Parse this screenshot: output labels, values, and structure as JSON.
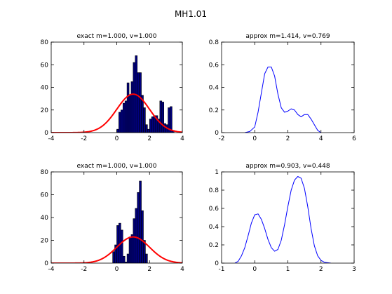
{
  "figure": {
    "title": "MH1.01"
  },
  "chart_data": [
    {
      "type": "histogram",
      "title": "exact m=1.000, v=1.000",
      "xlim": [
        -4,
        4
      ],
      "ylim": [
        0,
        80
      ],
      "xticks": [
        -4,
        -2,
        0,
        2,
        4
      ],
      "yticks": [
        0,
        20,
        40,
        60,
        80
      ],
      "bin_width": 0.125,
      "bars": [
        {
          "x": 0.0,
          "y": 3
        },
        {
          "x": 0.125,
          "y": 18
        },
        {
          "x": 0.25,
          "y": 20
        },
        {
          "x": 0.375,
          "y": 26
        },
        {
          "x": 0.5,
          "y": 28
        },
        {
          "x": 0.625,
          "y": 44
        },
        {
          "x": 0.75,
          "y": 33
        },
        {
          "x": 0.875,
          "y": 45
        },
        {
          "x": 1.0,
          "y": 62
        },
        {
          "x": 1.125,
          "y": 68
        },
        {
          "x": 1.25,
          "y": 53
        },
        {
          "x": 1.375,
          "y": 53
        },
        {
          "x": 1.5,
          "y": 33
        },
        {
          "x": 1.625,
          "y": 22
        },
        {
          "x": 1.75,
          "y": 7
        },
        {
          "x": 1.875,
          "y": 3
        },
        {
          "x": 2.0,
          "y": 12
        },
        {
          "x": 2.125,
          "y": 14
        },
        {
          "x": 2.25,
          "y": 15
        },
        {
          "x": 2.375,
          "y": 15
        },
        {
          "x": 2.5,
          "y": 12
        },
        {
          "x": 2.625,
          "y": 28
        },
        {
          "x": 2.75,
          "y": 27
        },
        {
          "x": 2.875,
          "y": 8
        },
        {
          "x": 3.0,
          "y": 7
        },
        {
          "x": 3.125,
          "y": 22
        },
        {
          "x": 3.25,
          "y": 23
        },
        {
          "x": 3.375,
          "y": 2
        }
      ],
      "curve": {
        "type": "normal_pdf_scaled",
        "mean": 1.0,
        "sd": 1.0,
        "peak": 34,
        "color": "#ff0000"
      },
      "bar_color": "#00007f"
    },
    {
      "type": "line",
      "title": "approx m=1.414, v=0.769",
      "xlim": [
        -2,
        6
      ],
      "ylim": [
        0,
        0.8
      ],
      "xticks": [
        -2,
        0,
        2,
        4,
        6
      ],
      "yticks": [
        0,
        0.2,
        0.4,
        0.6,
        0.8
      ],
      "color": "#0000ff",
      "x": [
        -0.6,
        -0.3,
        0,
        0.2,
        0.4,
        0.6,
        0.8,
        1.0,
        1.2,
        1.4,
        1.6,
        1.8,
        2.0,
        2.2,
        2.4,
        2.6,
        2.8,
        3.0,
        3.2,
        3.4,
        3.6,
        3.8,
        4.0
      ],
      "y": [
        0,
        0.01,
        0.05,
        0.18,
        0.35,
        0.52,
        0.58,
        0.58,
        0.5,
        0.34,
        0.22,
        0.18,
        0.19,
        0.21,
        0.2,
        0.16,
        0.14,
        0.16,
        0.16,
        0.12,
        0.07,
        0.02,
        0
      ]
    },
    {
      "type": "histogram",
      "title": "exact m=1.000, v=1.000",
      "xlim": [
        -4,
        4
      ],
      "ylim": [
        0,
        80
      ],
      "xticks": [
        -4,
        -2,
        0,
        2,
        4
      ],
      "yticks": [
        0,
        20,
        40,
        60,
        80
      ],
      "bin_width": 0.125,
      "bars": [
        {
          "x": -0.25,
          "y": 10
        },
        {
          "x": -0.125,
          "y": 16
        },
        {
          "x": 0.0,
          "y": 33
        },
        {
          "x": 0.125,
          "y": 35
        },
        {
          "x": 0.25,
          "y": 29
        },
        {
          "x": 0.375,
          "y": 6
        },
        {
          "x": 0.5,
          "y": 1
        },
        {
          "x": 0.625,
          "y": 8
        },
        {
          "x": 0.75,
          "y": 23
        },
        {
          "x": 0.875,
          "y": 25
        },
        {
          "x": 1.0,
          "y": 39
        },
        {
          "x": 1.125,
          "y": 48
        },
        {
          "x": 1.25,
          "y": 62
        },
        {
          "x": 1.375,
          "y": 72
        },
        {
          "x": 1.5,
          "y": 46
        },
        {
          "x": 1.625,
          "y": 20
        },
        {
          "x": 1.75,
          "y": 8
        }
      ],
      "curve": {
        "type": "normal_pdf_scaled",
        "mean": 1.0,
        "sd": 1.0,
        "peak": 23,
        "color": "#ff0000"
      },
      "bar_color": "#00007f"
    },
    {
      "type": "line",
      "title": "approx m=0.903, v=0.448",
      "xlim": [
        -1,
        3
      ],
      "ylim": [
        0,
        1
      ],
      "xticks": [
        -1,
        0,
        1,
        2,
        3
      ],
      "yticks": [
        0,
        0.2,
        0.4,
        0.6,
        0.8,
        1
      ],
      "color": "#0000ff",
      "x": [
        -0.6,
        -0.5,
        -0.4,
        -0.3,
        -0.2,
        -0.1,
        0,
        0.1,
        0.2,
        0.3,
        0.4,
        0.5,
        0.6,
        0.7,
        0.8,
        0.9,
        1.0,
        1.1,
        1.2,
        1.3,
        1.4,
        1.5,
        1.6,
        1.7,
        1.8,
        1.9,
        2.0,
        2.1,
        2.2,
        2.3
      ],
      "y": [
        0,
        0.02,
        0.08,
        0.17,
        0.3,
        0.44,
        0.53,
        0.54,
        0.48,
        0.38,
        0.26,
        0.17,
        0.13,
        0.15,
        0.25,
        0.42,
        0.62,
        0.8,
        0.91,
        0.95,
        0.93,
        0.82,
        0.62,
        0.38,
        0.19,
        0.08,
        0.03,
        0.01,
        0.005,
        0
      ]
    }
  ]
}
